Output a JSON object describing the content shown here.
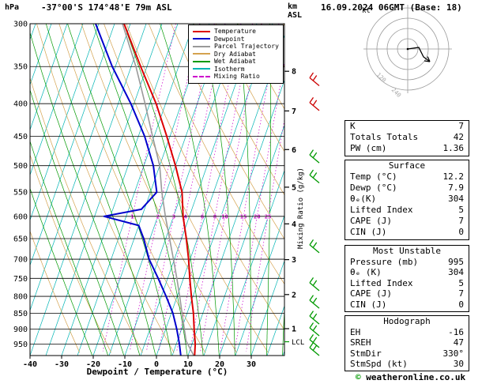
{
  "header": {
    "pressure_unit": "hPa",
    "station": "-37°00'S 174°48'E 79m ASL",
    "datetime": "16.09.2024 06GMT (Base: 18)",
    "alt_unit_line1": "km",
    "alt_unit_line2": "ASL"
  },
  "legend": {
    "items": [
      {
        "label": "Temperature",
        "color": "#dd0000"
      },
      {
        "label": "Dewpoint",
        "color": "#0000cc"
      },
      {
        "label": "Parcel Trajectory",
        "color": "#999999"
      },
      {
        "label": "Dry Adiabat",
        "color": "#d4a24e"
      },
      {
        "label": "Wet Adiabat",
        "color": "#009900"
      },
      {
        "label": "Isotherm",
        "color": "#00b4b4"
      },
      {
        "label": "Mixing Ratio",
        "color": "#cc00cc",
        "dashed": true
      }
    ]
  },
  "axes": {
    "x_title": "Dewpoint / Temperature (°C)",
    "x_ticks": [
      -40,
      -30,
      -20,
      -10,
      0,
      10,
      20,
      30
    ],
    "pressure_ticks": [
      300,
      350,
      400,
      450,
      500,
      550,
      600,
      650,
      700,
      750,
      800,
      850,
      900,
      950
    ],
    "km_ticks": [
      1,
      2,
      3,
      4,
      5,
      6,
      7,
      8
    ],
    "mixing_axis_title": "Mixing Ratio (g/kg)",
    "lcl_label": "LCL",
    "lcl_pressure": 942
  },
  "chart_data": {
    "type": "skewt-logp-sounding",
    "pressure_range": [
      300,
      990
    ],
    "temp_axis_range": [
      -40,
      40
    ],
    "isotherm_step": 5,
    "dry_adiabat_step": 10,
    "wet_adiabat_start_temps": [
      -20,
      -15,
      -10,
      -5,
      0,
      5,
      10,
      15,
      20,
      25,
      30,
      35,
      40
    ],
    "mixing_ratio_lines": [
      1,
      2,
      3,
      4,
      6,
      8,
      10,
      15,
      20,
      25
    ],
    "temperature_profile": [
      [
        995,
        12.2
      ],
      [
        950,
        11
      ],
      [
        925,
        10
      ],
      [
        900,
        9
      ],
      [
        850,
        7
      ],
      [
        800,
        4.5
      ],
      [
        750,
        2
      ],
      [
        700,
        -0.5
      ],
      [
        650,
        -3.5
      ],
      [
        600,
        -7
      ],
      [
        550,
        -10
      ],
      [
        500,
        -15
      ],
      [
        450,
        -21
      ],
      [
        400,
        -28
      ],
      [
        350,
        -37
      ],
      [
        300,
        -47
      ]
    ],
    "dewpoint_profile": [
      [
        995,
        7.9
      ],
      [
        950,
        6
      ],
      [
        900,
        3.5
      ],
      [
        850,
        0.5
      ],
      [
        800,
        -3.5
      ],
      [
        750,
        -8
      ],
      [
        700,
        -13
      ],
      [
        650,
        -17
      ],
      [
        620,
        -20
      ],
      [
        600,
        -32
      ],
      [
        585,
        -21
      ],
      [
        550,
        -18
      ],
      [
        500,
        -22
      ],
      [
        450,
        -28
      ],
      [
        400,
        -36
      ],
      [
        350,
        -46
      ],
      [
        300,
        -56
      ]
    ],
    "parcel_profile": [
      [
        995,
        12.2
      ],
      [
        940,
        7.8
      ],
      [
        900,
        5.9
      ],
      [
        850,
        3.4
      ],
      [
        800,
        0.8
      ],
      [
        750,
        -2.1
      ],
      [
        700,
        -5.3
      ],
      [
        650,
        -8.8
      ],
      [
        600,
        -12.6
      ],
      [
        550,
        -16.4
      ],
      [
        500,
        -20
      ],
      [
        450,
        -25.5
      ],
      [
        400,
        -31.5
      ],
      [
        350,
        -38.5
      ],
      [
        300,
        -47.5
      ]
    ],
    "wind_barbs": [
      {
        "p": 375,
        "color": "#cc0000"
      },
      {
        "p": 410,
        "color": "#cc0000"
      },
      {
        "p": 495,
        "color": "#009900"
      },
      {
        "p": 532,
        "color": "#009900"
      },
      {
        "p": 684,
        "color": "#009900"
      },
      {
        "p": 784,
        "color": "#009900"
      },
      {
        "p": 835,
        "color": "#009900"
      },
      {
        "p": 884,
        "color": "#009900"
      },
      {
        "p": 922,
        "color": "#009900"
      },
      {
        "p": 962,
        "color": "#009900"
      },
      {
        "p": 990,
        "color": "#009900"
      }
    ]
  },
  "hodograph": {
    "unit_label": "kt",
    "rings_kt": [
      10,
      20,
      30,
      40
    ],
    "ring_labels": [
      "120",
      "240"
    ],
    "trace": [
      [
        0,
        0
      ],
      [
        14,
        -2
      ],
      [
        20,
        10
      ],
      [
        28,
        16
      ]
    ]
  },
  "panels": {
    "indices": {
      "rows": [
        {
          "label": "K",
          "value": "7"
        },
        {
          "label": "Totals Totals",
          "value": "42"
        },
        {
          "label": "PW (cm)",
          "value": "1.36"
        }
      ]
    },
    "surface": {
      "title": "Surface",
      "rows": [
        {
          "label": "Temp (°C)",
          "value": "12.2"
        },
        {
          "label": "Dewp (°C)",
          "value": "7.9"
        },
        {
          "label": "θₑ(K)",
          "value": "304"
        },
        {
          "label": "Lifted Index",
          "value": "5"
        },
        {
          "label": "CAPE (J)",
          "value": "7"
        },
        {
          "label": "CIN (J)",
          "value": "0"
        }
      ]
    },
    "most_unstable": {
      "title": "Most Unstable",
      "rows": [
        {
          "label": "Pressure (mb)",
          "value": "995"
        },
        {
          "label": "θₑ (K)",
          "value": "304"
        },
        {
          "label": "Lifted Index",
          "value": "5"
        },
        {
          "label": "CAPE (J)",
          "value": "7"
        },
        {
          "label": "CIN (J)",
          "value": "0"
        }
      ]
    },
    "hodograph_stats": {
      "title": "Hodograph",
      "rows": [
        {
          "label": "EH",
          "value": "-16"
        },
        {
          "label": "SREH",
          "value": "47"
        },
        {
          "label": "StmDir",
          "value": "330°"
        },
        {
          "label": "StmSpd (kt)",
          "value": "30"
        }
      ]
    }
  },
  "footer": {
    "copyright_symbol": "©",
    "copyright_text": "weatheronline.co.uk"
  }
}
